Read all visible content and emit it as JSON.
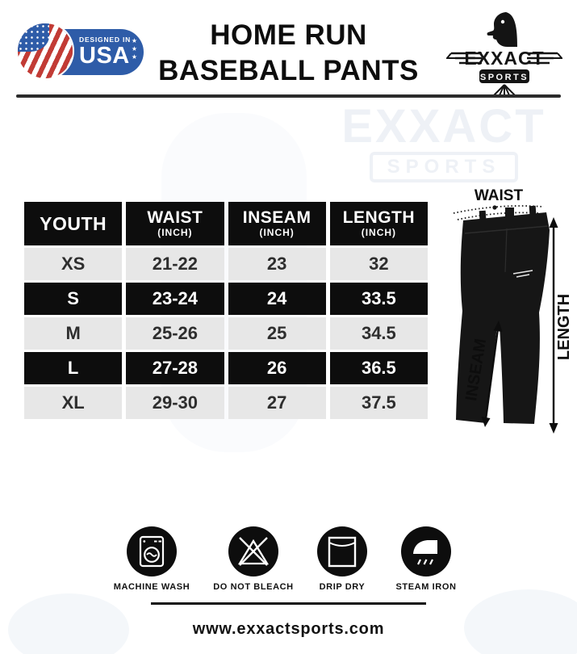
{
  "header": {
    "badge": {
      "designed_in": "DESIGNED IN",
      "country": "USA"
    },
    "title_line1": "HOME RUN",
    "title_line2": "BASEBALL PANTS",
    "logo": {
      "brand": "EXXACT",
      "sub": "SPORTS"
    }
  },
  "watermark": {
    "brand": "EXXACT",
    "sub": "SPORTS"
  },
  "size_table": {
    "columns": [
      {
        "label": "YOUTH",
        "unit": ""
      },
      {
        "label": "WAIST",
        "unit": "(INCH)"
      },
      {
        "label": "INSEAM",
        "unit": "(INCH)"
      },
      {
        "label": "LENGTH",
        "unit": "(INCH)"
      }
    ],
    "rows": [
      {
        "size": "XS",
        "waist": "21-22",
        "inseam": "23",
        "length": "32",
        "highlight": false
      },
      {
        "size": "S",
        "waist": "23-24",
        "inseam": "24",
        "length": "33.5",
        "highlight": true
      },
      {
        "size": "M",
        "waist": "25-26",
        "inseam": "25",
        "length": "34.5",
        "highlight": false
      },
      {
        "size": "L",
        "waist": "27-28",
        "inseam": "26",
        "length": "36.5",
        "highlight": true
      },
      {
        "size": "XL",
        "waist": "29-30",
        "inseam": "27",
        "length": "37.5",
        "highlight": false
      }
    ]
  },
  "diagram": {
    "waist_label": "WAIST",
    "inseam_label": "INSEAM",
    "length_label": "LENGTH"
  },
  "care_icons": [
    {
      "icon": "machine-wash-icon",
      "label": "MACHINE WASH"
    },
    {
      "icon": "do-not-bleach-icon",
      "label": "DO NOT BLEACH"
    },
    {
      "icon": "drip-dry-icon",
      "label": "DRIP DRY"
    },
    {
      "icon": "steam-iron-icon",
      "label": "STEAM IRON"
    }
  ],
  "footer": {
    "website": "www.exxactsports.com"
  },
  "colors": {
    "accent_blue": "#2e5ca8",
    "flag_red": "#c23b35",
    "row_dark": "#0d0d0d",
    "row_light": "#e7e7e7"
  }
}
